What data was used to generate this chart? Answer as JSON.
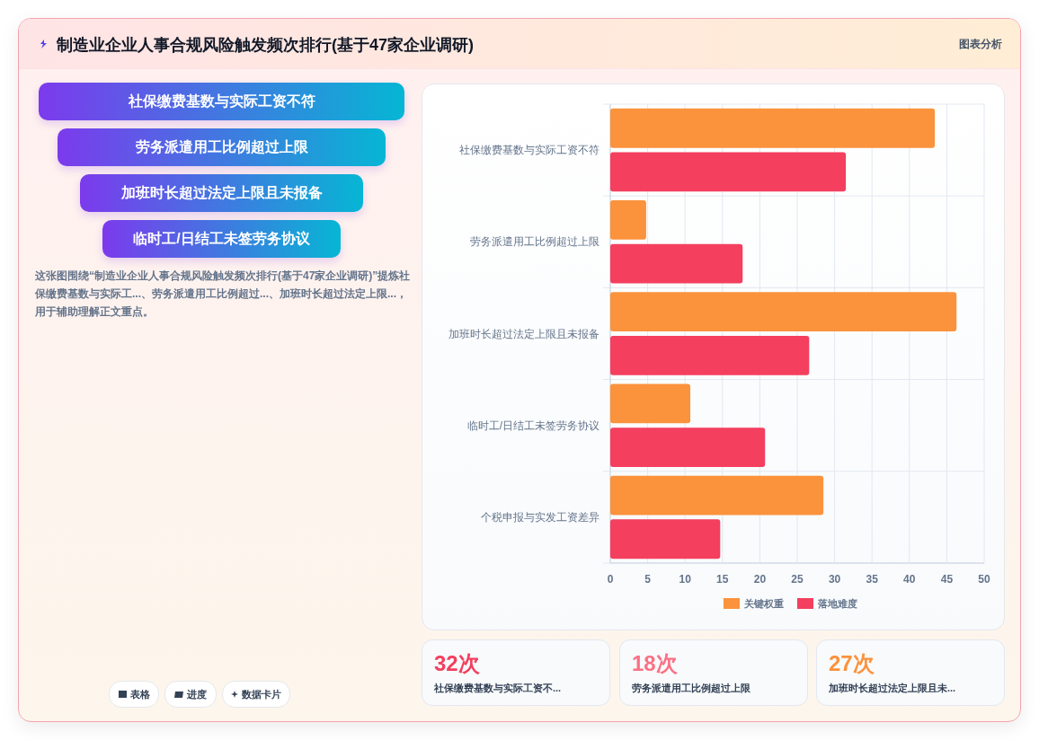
{
  "chart_data": {
    "type": "bar",
    "orientation": "horizontal",
    "title": "制造业企业人事合规风险触发频次排行(基于47家企业调研)",
    "categories": [
      "社保缴费基数与实际工资不符",
      "劳务派遣用工比例超过上限",
      "加班时长超过法定上限且未报备",
      "临时工/日结工未签劳务协议",
      "个税申报与实发工资差异"
    ],
    "series": [
      {
        "name": "关键权重",
        "color": "#fb923c",
        "values": [
          43.4,
          4.8,
          46.3,
          10.7,
          28.5
        ]
      },
      {
        "name": "落地难度",
        "color": "#f43f5e",
        "values": [
          31.5,
          17.7,
          26.6,
          20.7,
          14.7
        ]
      }
    ],
    "xlim": [
      0,
      50
    ],
    "xticks": [
      0,
      5,
      10,
      15,
      20,
      25,
      30,
      35,
      40,
      45,
      50
    ],
    "grid": true,
    "legend": "bottom",
    "annotations": [
      "图表分析",
      "社保缴费基数与实际工资不符",
      "劳务派遣用工比例超过上限",
      "加班时长超过法定上限且未报备",
      "临时工/日结工未签劳务协议",
      "这张图围绕“制造业企业人事合规风险触发频次排行(基于47家企业调研)”提炼社保缴费基数与实际工...、劳务派遣用工比例超过...、加班时长超过法定上限...，用于辅助理解正文重点。",
      "表格",
      "进度",
      "数据卡片",
      "32次",
      "社保缴费基数与实际工资不...",
      "18次",
      "劳务派遣用工比例超过上限",
      "27次",
      "加班时长超过法定上限且未..."
    ]
  }
}
